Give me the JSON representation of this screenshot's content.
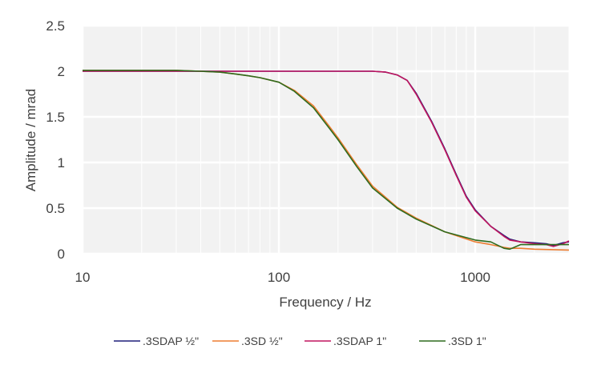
{
  "chart_data": {
    "type": "line",
    "title": "",
    "xlabel": "Frequency / Hz",
    "ylabel": "Amplitude / mrad",
    "xscale": "log",
    "xlim": [
      10,
      3000
    ],
    "ylim": [
      0,
      2.5
    ],
    "xticks": [
      10,
      100,
      1000
    ],
    "xtick_labels": [
      "10",
      "100",
      "1000"
    ],
    "yticks": [
      0,
      0.5,
      1,
      1.5,
      2,
      2.5
    ],
    "ytick_labels": [
      "0",
      "0.5",
      "1",
      "1.5",
      "2",
      "2.5"
    ],
    "grid": true,
    "legend_position": "bottom",
    "series": [
      {
        "name": ".3SDAP ½\"",
        "color": "#1f1f7a",
        "x": [
          10,
          100,
          300,
          350,
          400,
          450,
          500,
          600,
          700,
          800,
          900,
          1000,
          1200,
          1400,
          1500,
          1700,
          2000,
          2300,
          2500,
          2800,
          3000
        ],
        "y": [
          2.0,
          2.0,
          2.0,
          1.99,
          1.96,
          1.9,
          1.76,
          1.45,
          1.15,
          0.87,
          0.63,
          0.48,
          0.3,
          0.2,
          0.16,
          0.13,
          0.12,
          0.11,
          0.09,
          0.12,
          0.13
        ]
      },
      {
        "name": ".3SD ½\"",
        "color": "#ed7d31",
        "x": [
          10,
          30,
          40,
          50,
          60,
          70,
          80,
          100,
          120,
          150,
          180,
          200,
          250,
          300,
          400,
          500,
          700,
          1000,
          1200,
          1400,
          1500,
          1700,
          2000,
          3000
        ],
        "y": [
          2.01,
          2.01,
          2.0,
          1.99,
          1.97,
          1.95,
          1.93,
          1.88,
          1.79,
          1.62,
          1.4,
          1.27,
          0.97,
          0.74,
          0.51,
          0.39,
          0.24,
          0.13,
          0.1,
          0.07,
          0.06,
          0.06,
          0.05,
          0.04
        ]
      },
      {
        "name": ".3SDAP 1\"",
        "color": "#c0145e",
        "x": [
          10,
          100,
          300,
          350,
          400,
          450,
          500,
          600,
          700,
          800,
          900,
          1000,
          1200,
          1400,
          1500,
          1700,
          2000,
          2300,
          2500,
          2800,
          3000
        ],
        "y": [
          2.0,
          2.0,
          2.0,
          1.99,
          1.96,
          1.9,
          1.75,
          1.44,
          1.14,
          0.86,
          0.62,
          0.47,
          0.3,
          0.19,
          0.15,
          0.13,
          0.11,
          0.1,
          0.08,
          0.11,
          0.14
        ]
      },
      {
        "name": ".3SD 1\"",
        "color": "#2e6b1e",
        "x": [
          10,
          30,
          40,
          50,
          60,
          70,
          80,
          100,
          120,
          150,
          180,
          200,
          250,
          300,
          400,
          500,
          700,
          1000,
          1200,
          1400,
          1500,
          1700,
          2000,
          3000
        ],
        "y": [
          2.01,
          2.01,
          2.0,
          1.99,
          1.97,
          1.95,
          1.93,
          1.88,
          1.78,
          1.6,
          1.38,
          1.25,
          0.95,
          0.72,
          0.5,
          0.38,
          0.24,
          0.15,
          0.13,
          0.06,
          0.05,
          0.1,
          0.1,
          0.1
        ]
      }
    ]
  }
}
